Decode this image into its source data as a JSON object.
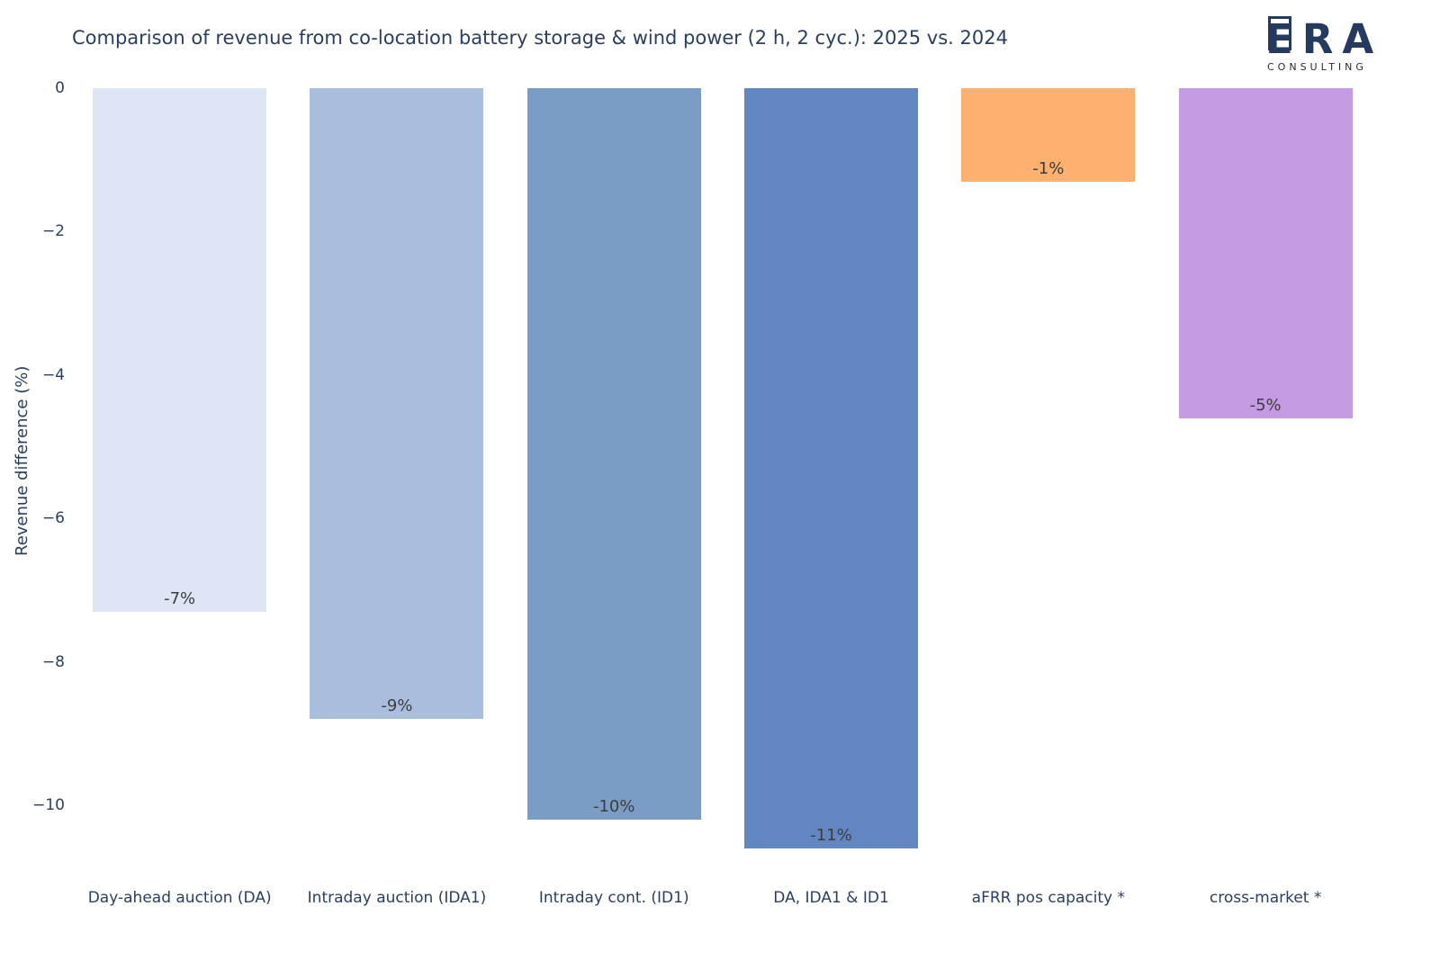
{
  "header": {
    "title": "Comparison of revenue from co-location battery storage & wind power (2 h, 2 cyc.): 2025 vs. 2024"
  },
  "logo": {
    "name": "ERA",
    "subtitle": "CONSULTING",
    "color": "#253a5e"
  },
  "chart_data": {
    "type": "bar",
    "title": "Comparison of revenue from co-location battery storage & wind power (2 h, 2 cyc.): 2025 vs. 2024",
    "xlabel": "",
    "ylabel": "Revenue difference (%)",
    "categories": [
      "Day-ahead auction (DA)",
      "Intraday auction (IDA1)",
      "Intraday cont. (ID1)",
      "DA, IDA1 & ID1",
      "aFRR pos capacity *",
      "cross-market *"
    ],
    "values": [
      -7.3,
      -8.8,
      -10.2,
      -10.6,
      -1.3,
      -4.6
    ],
    "labels": [
      "-7%",
      "-9%",
      "-10%",
      "-11%",
      "-1%",
      "-5%"
    ],
    "bar_colors": [
      "#dce6f5",
      "#a9bedd",
      "#7b9cc4",
      "#6286c1",
      "#fdb06f",
      "#c49ae2"
    ],
    "yticks": [
      {
        "label": "0",
        "value": 0
      },
      {
        "label": "−2",
        "value": -2
      },
      {
        "label": "−4",
        "value": -4
      },
      {
        "label": "−6",
        "value": -6
      },
      {
        "label": "−8",
        "value": -8
      },
      {
        "label": "−10",
        "value": -10
      }
    ],
    "ylim": [
      -11,
      0
    ],
    "grid": false,
    "legend": "none",
    "text_color": "#2a3f5f",
    "bar_label_color": "#3d3d3d",
    "background": "#ffffff"
  }
}
